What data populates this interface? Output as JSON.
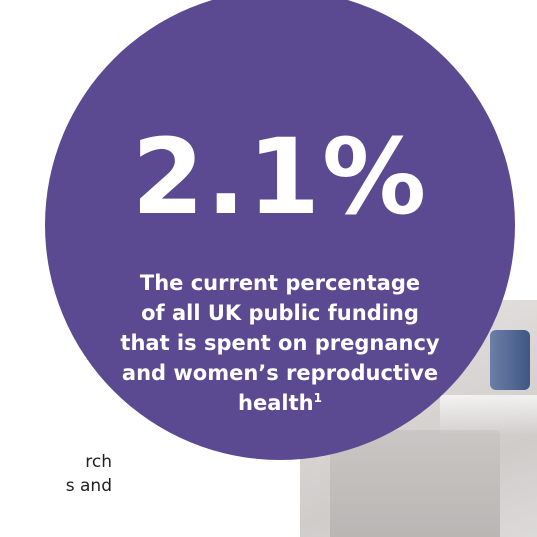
{
  "stat": {
    "value": "2.1%",
    "caption_line1": "The current percentage",
    "caption_line2": "of all UK public funding",
    "caption_line3": "that is spent on pregnancy",
    "caption_line4": "and women’s reproductive",
    "caption_line5": "health",
    "footnote_ref": "1"
  },
  "side_text": {
    "line1": "rch",
    "line2": "s and"
  },
  "colors": {
    "circle": "#5b4a91",
    "text_on_circle": "#ffffff",
    "body_text": "#1f1f1f"
  }
}
